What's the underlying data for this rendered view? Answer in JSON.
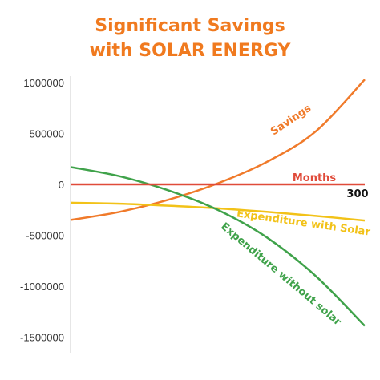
{
  "title_line1": "Significant Savings",
  "title_line2": "with SOLAR ENERGY",
  "chart_data": {
    "type": "line",
    "title": "Significant Savings with SOLAR ENERGY",
    "xlabel": "Months",
    "x_tick_labels": [
      "300"
    ],
    "xlim": [
      0,
      300
    ],
    "ylim": [
      -1550000,
      1050000
    ],
    "y_ticks": [
      1000000,
      500000,
      0,
      -500000,
      -1000000,
      -1500000
    ],
    "y_tick_labels": [
      "1000000",
      "500000",
      "0",
      "-500000",
      "-1000000",
      "-1500000"
    ],
    "grid": false,
    "legend": "none",
    "series": [
      {
        "name": "Savings",
        "color": "#f07a2a",
        "x": [
          0,
          50,
          100,
          150,
          200,
          250,
          300
        ],
        "y": [
          -350000,
          -270000,
          -150000,
          10000,
          220000,
          520000,
          1030000
        ]
      },
      {
        "name": "Expenditure with Solar",
        "color": "#f2c218",
        "x": [
          0,
          50,
          100,
          150,
          200,
          250,
          300
        ],
        "y": [
          -180000,
          -190000,
          -210000,
          -235000,
          -270000,
          -310000,
          -355000
        ]
      },
      {
        "name": "Expenditure without solar",
        "color": "#3fa24a",
        "x": [
          0,
          50,
          100,
          150,
          200,
          250,
          300
        ],
        "y": [
          170000,
          80000,
          -60000,
          -250000,
          -520000,
          -900000,
          -1390000
        ]
      },
      {
        "name": "Months",
        "color": "#e04b3a",
        "x": [
          0,
          300
        ],
        "y": [
          0,
          0
        ]
      }
    ]
  }
}
